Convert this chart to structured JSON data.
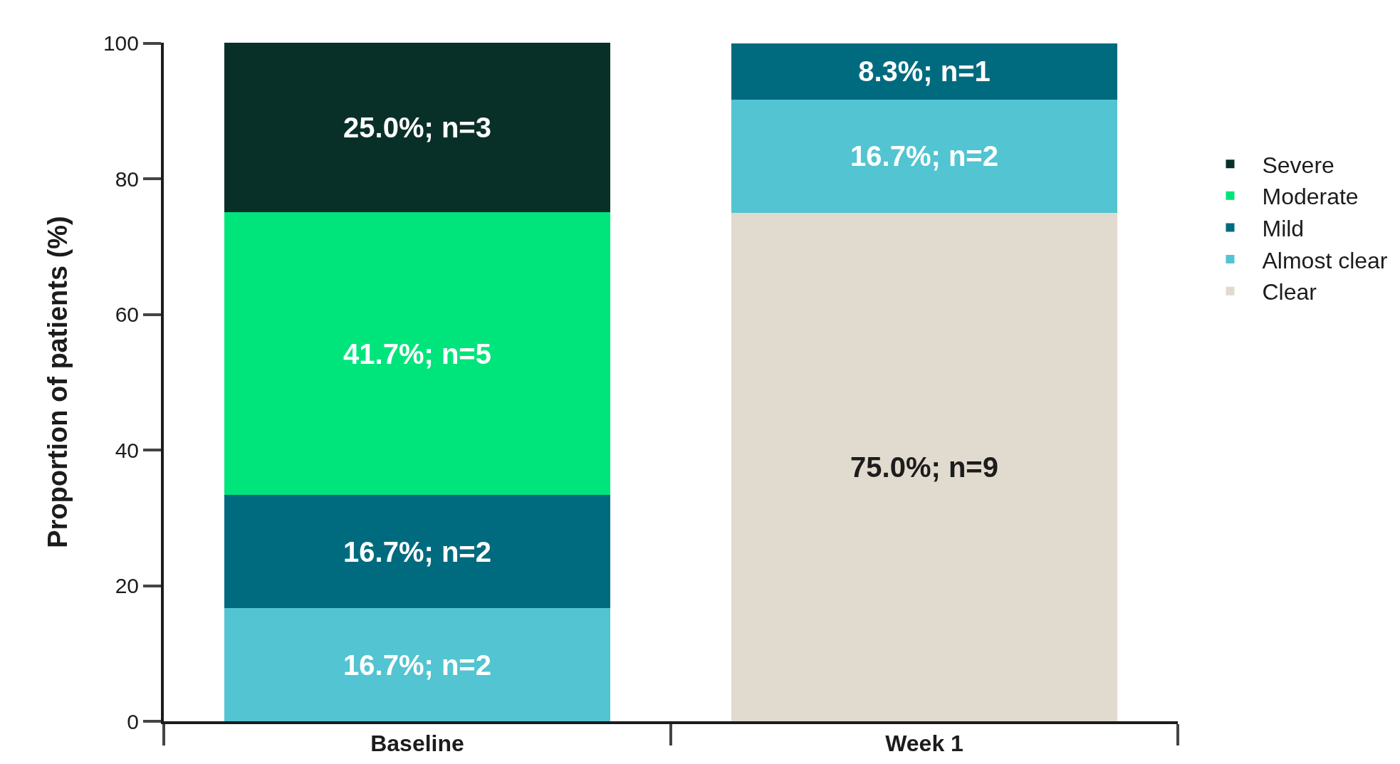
{
  "chart_data": {
    "type": "bar",
    "stacked": true,
    "ylabel": "Proportion of patients (%)",
    "categories": [
      "Baseline",
      "Week 1"
    ],
    "series": [
      {
        "name": "Clear",
        "color": "#e1dace",
        "values": [
          null,
          75.0
        ],
        "value_labels": [
          null,
          "75.0%; n=9"
        ]
      },
      {
        "name": "Almost clear",
        "color": "#53c4d1",
        "values": [
          16.7,
          16.7
        ],
        "value_labels": [
          "16.7%; n=2",
          "16.7%; n=2"
        ]
      },
      {
        "name": "Mild",
        "color": "#006b7f",
        "values": [
          16.7,
          8.3
        ],
        "value_labels": [
          "16.7%; n=2",
          "8.3%; n=1"
        ]
      },
      {
        "name": "Moderate",
        "color": "#00e47c",
        "values": [
          41.7,
          null
        ],
        "value_labels": [
          "41.7%; n=5",
          null
        ]
      },
      {
        "name": "Severe",
        "color": "#093028",
        "values": [
          25.0,
          null
        ],
        "value_labels": [
          "25.0%; n=3",
          null
        ]
      }
    ],
    "ylim": [
      0,
      100.1
    ],
    "yticks": [
      0,
      20,
      40,
      60,
      80,
      100
    ],
    "legend": "right"
  }
}
